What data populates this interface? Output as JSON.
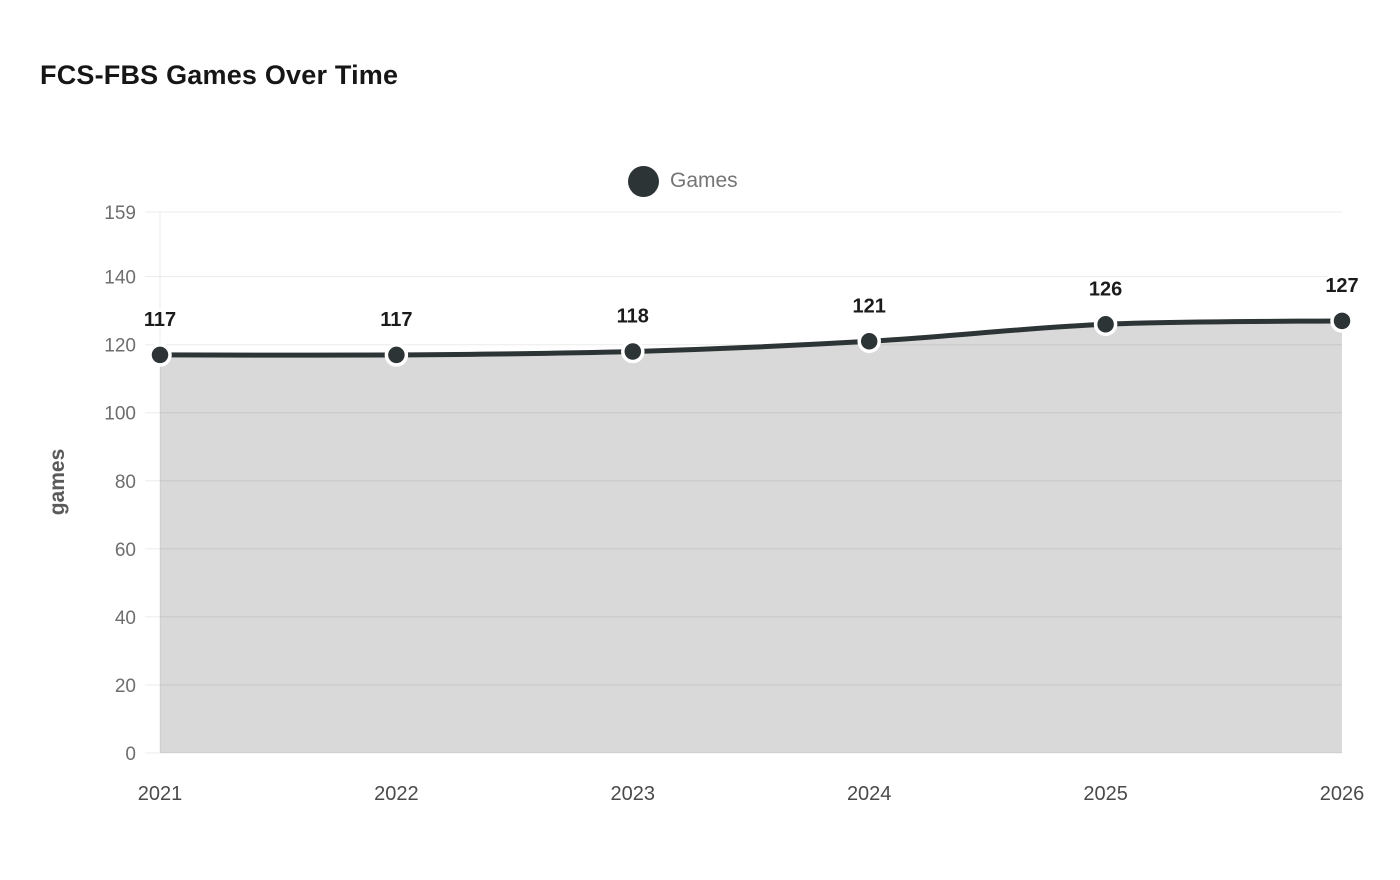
{
  "header": {
    "title": "FCS-FBS Games Over Time"
  },
  "legend": {
    "items": [
      {
        "label": "Games",
        "color": "#2d3436"
      }
    ]
  },
  "chart_data": {
    "type": "area",
    "title": "FCS-FBS Games Over Time",
    "categories": [
      "2021",
      "2022",
      "2023",
      "2024",
      "2025",
      "2026"
    ],
    "series": [
      {
        "name": "Games",
        "values": [
          117,
          117,
          118,
          121,
          126,
          127
        ]
      }
    ],
    "xlabel": "",
    "ylabel": "games",
    "ylim": [
      0,
      159
    ],
    "y_ticks": [
      0,
      20,
      40,
      60,
      80,
      100,
      120,
      140,
      159
    ],
    "grid": true,
    "data_labels_shown": true,
    "legend_position": "top-center",
    "colors": {
      "line": "#2d3436",
      "point": "#2d3436",
      "point_ring": "#ffffff",
      "area": "#d9d9d9",
      "grid": "rgba(0,0,0,0.08)",
      "y_tick_label": "#6e6e6e",
      "x_tick_label": "#4a4a4a",
      "data_label": "#1b1b1b",
      "data_label_halo": "#ffffff",
      "axis_title": "#5a5a5a",
      "legend_text": "#757575",
      "title": "#161616",
      "background": "#ffffff"
    }
  }
}
